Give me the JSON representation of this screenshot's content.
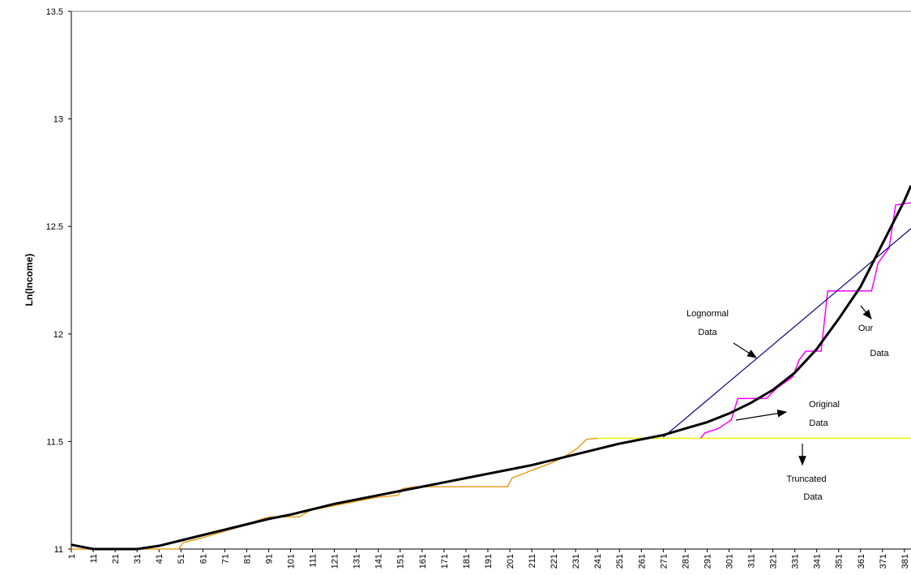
{
  "chart_data": {
    "type": "line",
    "y_label": "Ln(Income)",
    "xlim": [
      1,
      384
    ],
    "xticks": [
      1,
      11,
      21,
      31,
      41,
      51,
      61,
      71,
      81,
      91,
      101,
      111,
      121,
      131,
      141,
      151,
      161,
      171,
      181,
      191,
      201,
      211,
      221,
      231,
      241,
      251,
      261,
      271,
      281,
      291,
      301,
      311,
      321,
      331,
      341,
      351,
      361,
      371,
      381
    ],
    "ylim": [
      11,
      13.5
    ],
    "yticks": [
      11,
      11.5,
      12,
      12.5,
      13,
      13.5
    ],
    "series": [
      {
        "color": "#e8a020",
        "width": 1.5,
        "x": [
          1,
          50,
          52,
          60,
          70,
          80,
          88,
          92,
          105,
          110,
          120,
          130,
          140,
          150,
          152,
          158,
          200,
          202,
          207,
          212,
          220,
          226,
          232,
          236,
          241
        ],
        "values": [
          11.0,
          11.0,
          11.03,
          11.05,
          11.08,
          11.11,
          11.14,
          11.15,
          11.15,
          11.18,
          11.2,
          11.22,
          11.24,
          11.25,
          11.28,
          11.29,
          11.29,
          11.33,
          11.35,
          11.37,
          11.4,
          11.43,
          11.47,
          11.51,
          11.515
        ]
      },
      {
        "color": "#f0f000",
        "width": 1.5,
        "x": [
          241,
          384
        ],
        "values": [
          11.515,
          11.515
        ]
      },
      {
        "color": "#ff00ff",
        "width": 1.5,
        "x": [
          288,
          290,
          296,
          302,
          305,
          318,
          323,
          330,
          333,
          336,
          343,
          346,
          366,
          369,
          374,
          377,
          384
        ],
        "values": [
          11.515,
          11.54,
          11.56,
          11.6,
          11.7,
          11.7,
          11.75,
          11.8,
          11.88,
          11.92,
          11.92,
          12.2,
          12.2,
          12.33,
          12.4,
          12.6,
          12.61
        ]
      },
      {
        "color": "#000080",
        "width": 1.2,
        "x": [
          271,
          384
        ],
        "values": [
          11.52,
          12.49
        ]
      },
      {
        "color": "#000000",
        "width": 3,
        "x": [
          1,
          11,
          21,
          31,
          41,
          51,
          61,
          71,
          81,
          91,
          101,
          111,
          121,
          131,
          141,
          151,
          161,
          171,
          181,
          191,
          201,
          211,
          221,
          231,
          241,
          251,
          261,
          271,
          281,
          291,
          301,
          311,
          321,
          331,
          341,
          351,
          361,
          371,
          381,
          384
        ],
        "values": [
          11.02,
          11.0,
          11.0,
          11.0,
          11.015,
          11.04,
          11.065,
          11.09,
          11.115,
          11.14,
          11.16,
          11.185,
          11.21,
          11.23,
          11.25,
          11.27,
          11.29,
          11.31,
          11.33,
          11.35,
          11.37,
          11.39,
          11.415,
          11.44,
          11.465,
          11.49,
          11.51,
          11.53,
          11.56,
          11.59,
          11.63,
          11.68,
          11.74,
          11.82,
          11.93,
          12.07,
          12.22,
          12.42,
          12.62,
          12.69
        ]
      }
    ],
    "annotations": [
      [
        "Lognormal",
        "Data"
      ],
      [
        "Our",
        "Data"
      ],
      [
        "Original",
        "Data"
      ],
      [
        "Truncated",
        "Data"
      ]
    ]
  }
}
